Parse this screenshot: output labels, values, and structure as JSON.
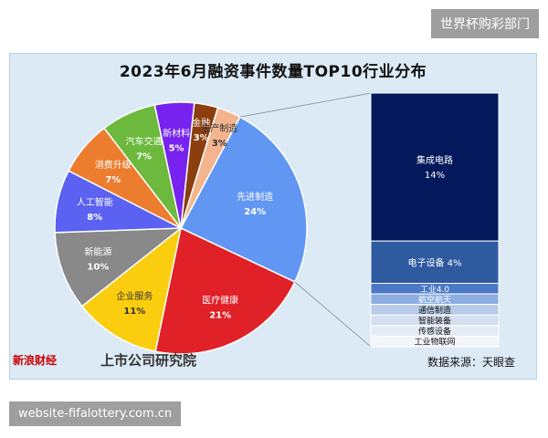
{
  "watermark_top": "世界杯购彩部门",
  "watermark_bottom": "website-fifalottery.com.cn",
  "source": "数据来源：天眼查",
  "logo_left": "新浪财经",
  "logo_right": "上市公司研究院",
  "chart_data": {
    "type": "pie",
    "title": "2023年6月融资事件数量TOP10行业分布",
    "slices": [
      {
        "label": "先进制造",
        "value": 24,
        "pct_label": "24%",
        "color": "#6197f2"
      },
      {
        "label": "医疗健康",
        "value": 21,
        "pct_label": "21%",
        "color": "#e02127"
      },
      {
        "label": "企业服务",
        "value": 11,
        "pct_label": "11%",
        "color": "#fbcd0f"
      },
      {
        "label": "新能源",
        "value": 10,
        "pct_label": "10%",
        "color": "#898989"
      },
      {
        "label": "人工智能",
        "value": 8,
        "pct_label": "8%",
        "color": "#5b61f1"
      },
      {
        "label": "消费升级",
        "value": 7,
        "pct_label": "7%",
        "color": "#ec7d2f"
      },
      {
        "label": "汽车交通",
        "value": 7,
        "pct_label": "7%",
        "color": "#6db93e"
      },
      {
        "label": "新材料",
        "value": 5,
        "pct_label": "5%",
        "color": "#7722ef"
      },
      {
        "label": "金融",
        "value": 3,
        "pct_label": "3%",
        "color": "#8b3f0f"
      },
      {
        "label": "生产制造",
        "value": 3,
        "pct_label": "3%",
        "color": "#f3b48e"
      }
    ],
    "breakdown": [
      {
        "label": "集成电路",
        "value": 14,
        "pct_label": "14%",
        "color": "#04195c",
        "text_color": "#ffffff"
      },
      {
        "label": "电子设备",
        "value": 4,
        "pct_label": "4%",
        "color": "#2e5aa0",
        "text_color": "#ffffff"
      },
      {
        "label": "工业4.0",
        "value": 1,
        "pct_label": "",
        "color": "#4a78c4",
        "text_color": "#ffffff"
      },
      {
        "label": "航空航天",
        "value": 1,
        "pct_label": "",
        "color": "#8daee0",
        "text_color": "#ffffff"
      },
      {
        "label": "通信制造",
        "value": 1,
        "pct_label": "",
        "color": "#b8cbe8",
        "text_color": "#111111"
      },
      {
        "label": "智能装备",
        "value": 1,
        "pct_label": "",
        "color": "#d3deef",
        "text_color": "#111111"
      },
      {
        "label": "传感设备",
        "value": 1,
        "pct_label": "",
        "color": "#e4ebf5",
        "text_color": "#111111"
      },
      {
        "label": "工业物联网",
        "value": 1,
        "pct_label": "",
        "color": "#f2f5fa",
        "text_color": "#111111"
      }
    ]
  }
}
